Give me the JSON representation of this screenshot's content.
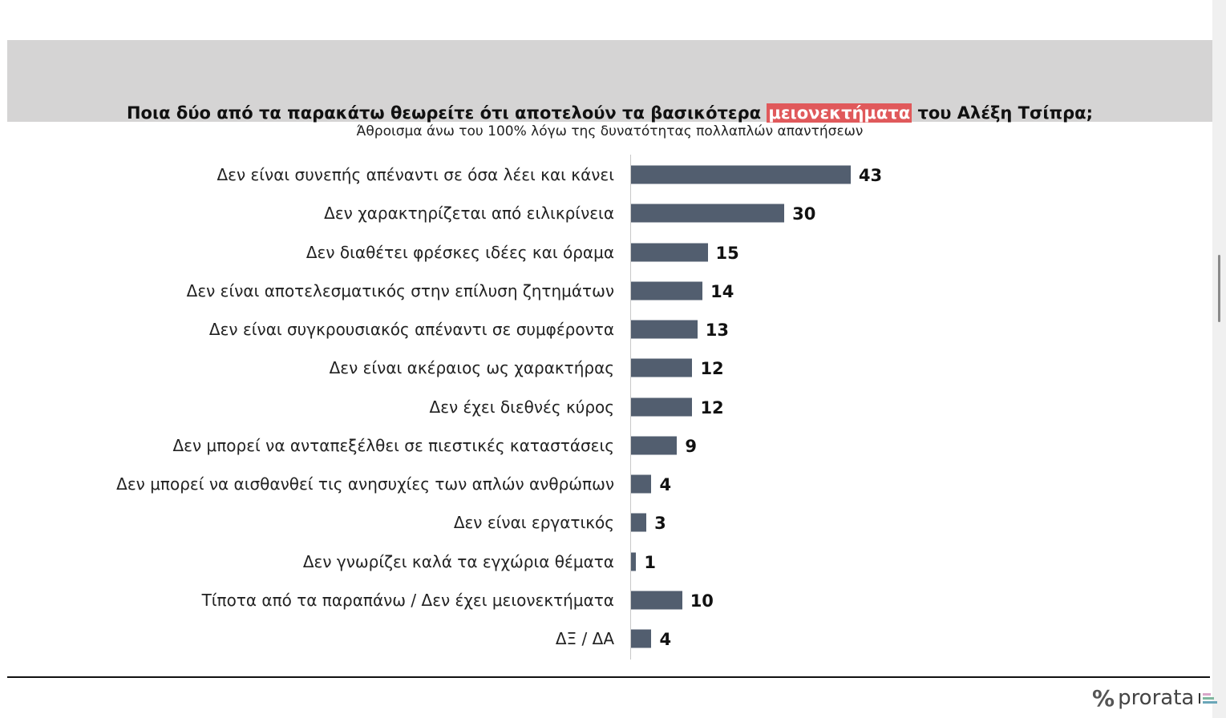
{
  "header": {
    "title_before": "Ποια δύο από τα παρακάτω θεωρείτε ότι αποτελούν τα βασικότερα",
    "title_highlight": "μειονεκτήματα",
    "title_after": "του Αλέξη Τσίπρα;",
    "subtitle": "Άθροισμα άνω του 100% λόγω της δυνατότητας πολλαπλών απαντήσεων",
    "highlight_color": "#e0595b"
  },
  "chart_data": {
    "type": "bar",
    "orientation": "horizontal",
    "categories": [
      "Δεν είναι συνεπής απέναντι σε όσα λέει και κάνει",
      "Δεν χαρακτηρίζεται από ειλικρίνεια",
      "Δεν διαθέτει φρέσκες ιδέες και όραμα",
      "Δεν είναι αποτελεσματικός στην επίλυση ζητημάτων",
      "Δεν είναι συγκρουσιακός απέναντι σε συμφέροντα",
      "Δεν είναι ακέραιος ως χαρακτήρας",
      "Δεν έχει διεθνές κύρος",
      "Δεν μπορεί να ανταπεξέλθει σε πιεστικές καταστάσεις",
      "Δεν μπορεί να αισθανθεί τις ανησυχίες των απλών ανθρώπων",
      "Δεν είναι εργατικός",
      "Δεν γνωρίζει καλά τα εγχώρια θέματα",
      "Τίποτα από τα παραπάνω / Δεν έχει μειονεκτήματα",
      "ΔΞ / ΔΑ"
    ],
    "values": [
      43,
      30,
      15,
      14,
      13,
      12,
      12,
      9,
      4,
      3,
      1,
      10,
      4
    ],
    "bar_color": "#525e6f",
    "xlim": [
      0,
      100
    ],
    "grid": false,
    "data_labels": true
  },
  "footer": {
    "logo_text": "prorata",
    "logo_symbol": "%"
  }
}
